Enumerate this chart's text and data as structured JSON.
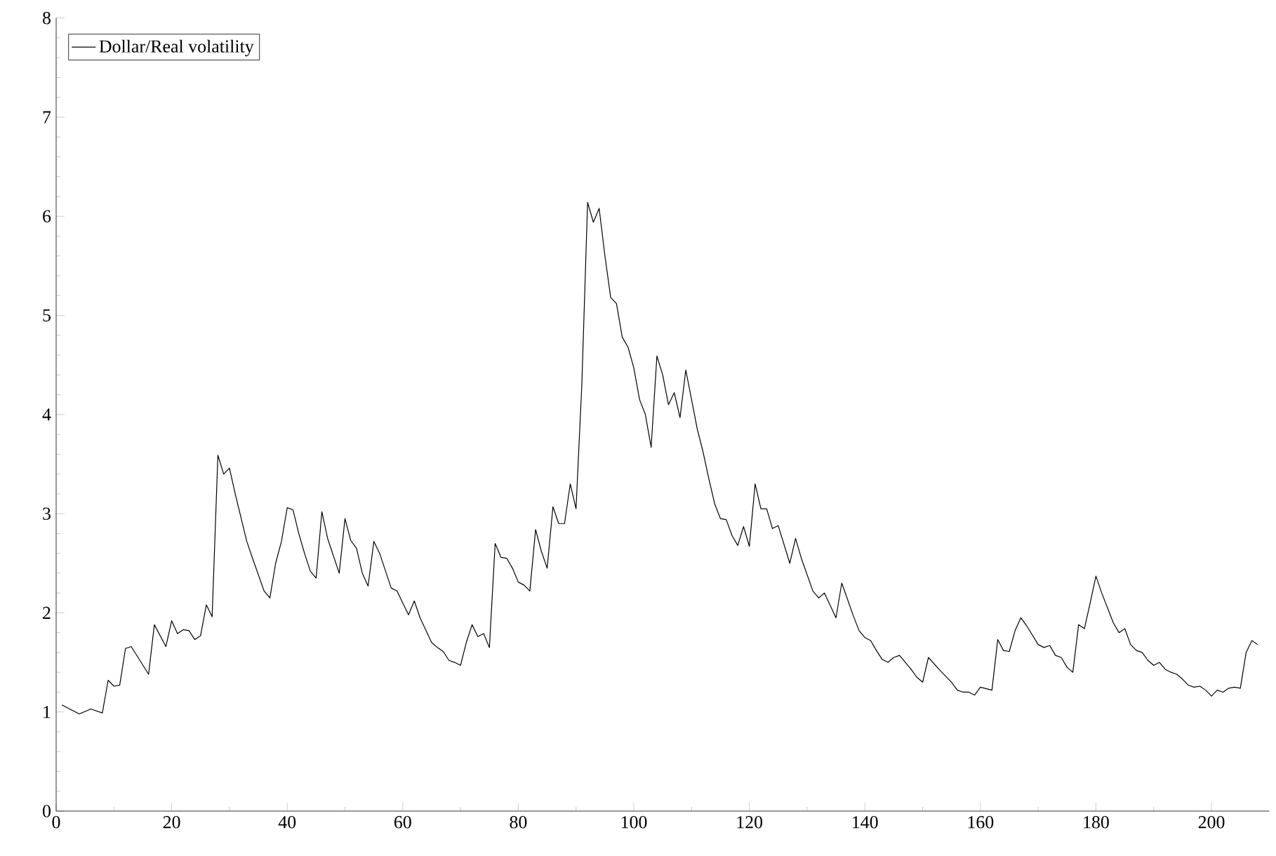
{
  "chart_data": {
    "type": "line",
    "x": [
      1,
      4,
      6,
      8,
      9,
      10,
      11,
      12,
      13,
      16,
      17,
      19,
      20,
      21,
      22,
      23,
      24,
      25,
      26,
      27,
      28,
      29,
      30,
      31,
      33,
      34,
      36,
      37,
      38,
      39,
      40,
      41,
      42,
      43,
      44,
      45,
      46,
      47,
      49,
      50,
      51,
      52,
      53,
      54,
      55,
      56,
      58,
      59,
      60,
      61,
      62,
      63,
      65,
      66,
      67,
      68,
      69,
      70,
      71,
      72,
      73,
      74,
      75,
      76,
      77,
      78,
      79,
      80,
      81,
      82,
      83,
      84,
      85,
      86,
      87,
      88,
      89,
      90,
      91,
      92,
      93,
      94,
      95,
      96,
      97,
      98,
      99,
      100,
      101,
      102,
      103,
      104,
      105,
      106,
      107,
      108,
      109,
      110,
      111,
      112,
      113,
      114,
      115,
      116,
      117,
      118,
      119,
      120,
      121,
      122,
      123,
      124,
      125,
      127,
      128,
      129,
      131,
      132,
      133,
      135,
      136,
      138,
      139,
      140,
      141,
      142,
      143,
      144,
      145,
      146,
      148,
      149,
      150,
      151,
      153,
      155,
      156,
      157,
      158,
      159,
      160,
      162,
      163,
      164,
      165,
      166,
      167,
      168,
      170,
      171,
      172,
      173,
      174,
      175,
      176,
      177,
      178,
      179,
      180,
      181,
      183,
      184,
      185,
      186,
      187,
      188,
      189,
      190,
      191,
      192,
      193,
      194,
      195,
      196,
      197,
      198,
      199,
      200,
      201,
      202,
      203,
      204,
      205,
      206,
      207,
      208
    ],
    "series": [
      {
        "name": "Dollar/Real volatility",
        "color": "#000000",
        "values": [
          1.07,
          0.98,
          1.03,
          0.99,
          1.32,
          1.26,
          1.27,
          1.64,
          1.66,
          1.38,
          1.88,
          1.66,
          1.92,
          1.79,
          1.83,
          1.82,
          1.73,
          1.77,
          2.08,
          1.96,
          3.59,
          3.4,
          3.46,
          3.2,
          2.72,
          2.55,
          2.22,
          2.15,
          2.5,
          2.72,
          3.06,
          3.04,
          2.8,
          2.6,
          2.42,
          2.35,
          3.02,
          2.75,
          2.4,
          2.95,
          2.73,
          2.65,
          2.4,
          2.27,
          2.72,
          2.6,
          2.25,
          2.22,
          2.1,
          1.98,
          2.12,
          1.95,
          1.7,
          1.65,
          1.61,
          1.52,
          1.5,
          1.47,
          1.7,
          1.88,
          1.76,
          1.79,
          1.65,
          2.7,
          2.56,
          2.55,
          2.45,
          2.31,
          2.28,
          2.22,
          2.84,
          2.62,
          2.45,
          3.07,
          2.9,
          2.9,
          3.3,
          3.05,
          4.3,
          6.14,
          5.94,
          6.08,
          5.6,
          5.18,
          5.12,
          4.78,
          4.68,
          4.47,
          4.15,
          4.0,
          3.67,
          4.59,
          4.4,
          4.1,
          4.22,
          3.97,
          4.45,
          4.15,
          3.85,
          3.62,
          3.35,
          3.1,
          2.95,
          2.94,
          2.78,
          2.68,
          2.87,
          2.67,
          3.3,
          3.05,
          3.05,
          2.85,
          2.88,
          2.5,
          2.75,
          2.55,
          2.22,
          2.15,
          2.2,
          1.95,
          2.3,
          1.97,
          1.82,
          1.75,
          1.72,
          1.62,
          1.53,
          1.5,
          1.55,
          1.57,
          1.43,
          1.35,
          1.3,
          1.55,
          1.42,
          1.3,
          1.22,
          1.2,
          1.2,
          1.17,
          1.25,
          1.22,
          1.73,
          1.62,
          1.61,
          1.82,
          1.95,
          1.87,
          1.68,
          1.65,
          1.67,
          1.57,
          1.55,
          1.45,
          1.4,
          1.88,
          1.84,
          2.1,
          2.37,
          2.2,
          1.9,
          1.8,
          1.84,
          1.68,
          1.62,
          1.6,
          1.52,
          1.47,
          1.5,
          1.43,
          1.4,
          1.38,
          1.33,
          1.27,
          1.25,
          1.26,
          1.22,
          1.16,
          1.22,
          1.2,
          1.24,
          1.25,
          1.24,
          1.6,
          1.72,
          1.68
        ]
      }
    ],
    "xlim": [
      0,
      210
    ],
    "ylim": [
      0,
      8
    ],
    "xticks": [
      0,
      20,
      40,
      60,
      80,
      100,
      120,
      140,
      160,
      180,
      200
    ],
    "yticks": [
      0,
      1,
      2,
      3,
      4,
      5,
      6,
      7,
      8
    ],
    "grid": false,
    "legend": "top left",
    "marker": "none",
    "line_style": "solid"
  }
}
